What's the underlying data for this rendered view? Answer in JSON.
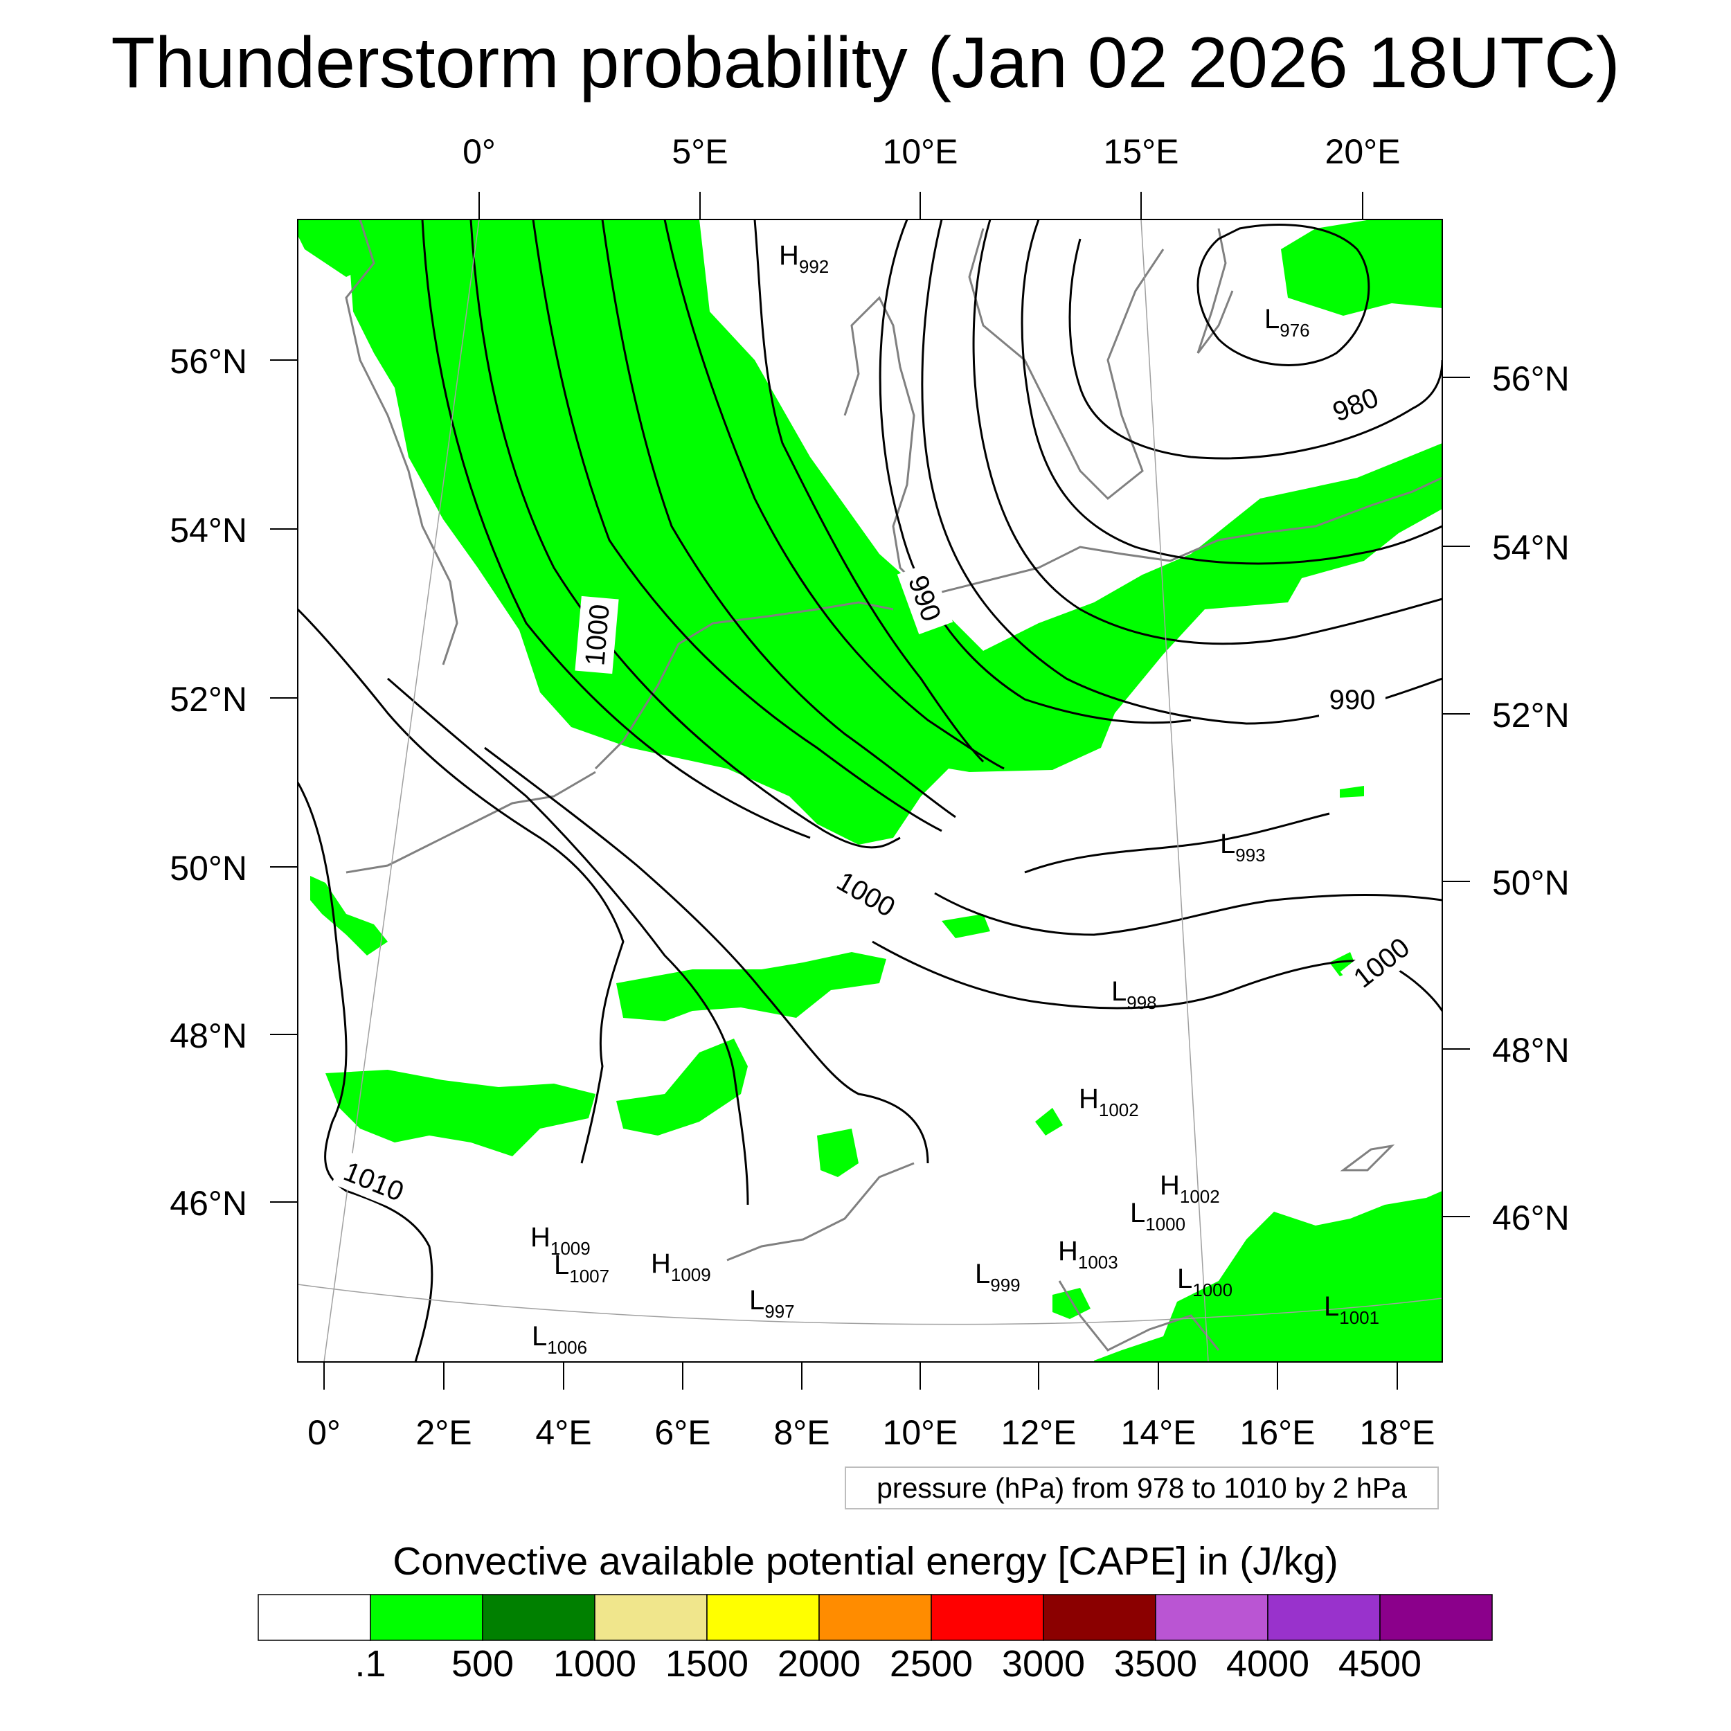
{
  "title": "Thunderstorm probability (Jan 02 2026 18UTC)",
  "top_longitudes": [
    "0°",
    "5°E",
    "10°E",
    "15°E",
    "20°E"
  ],
  "bottom_longitudes": [
    "0°",
    "2°E",
    "4°E",
    "6°E",
    "8°E",
    "10°E",
    "12°E",
    "14°E",
    "16°E",
    "18°E"
  ],
  "left_latitudes": [
    "56°N",
    "54°N",
    "52°N",
    "50°N",
    "48°N",
    "46°N"
  ],
  "right_latitudes": [
    "56°N",
    "54°N",
    "52°N",
    "50°N",
    "48°N",
    "46°N"
  ],
  "contour_labels": [
    "980",
    "990",
    "990",
    "1000",
    "1000",
    "1000",
    "1010"
  ],
  "pressure_centers": [
    {
      "kind": "H",
      "value": "992"
    },
    {
      "kind": "L",
      "value": "976"
    },
    {
      "kind": "L",
      "value": "993"
    },
    {
      "kind": "L",
      "value": "998"
    },
    {
      "kind": "H",
      "value": "1002"
    },
    {
      "kind": "H",
      "value": "1002"
    },
    {
      "kind": "L",
      "value": "1000"
    },
    {
      "kind": "H",
      "value": "1009"
    },
    {
      "kind": "L",
      "value": "1007"
    },
    {
      "kind": "H",
      "value": "1009"
    },
    {
      "kind": "L",
      "value": "997"
    },
    {
      "kind": "L",
      "value": "999"
    },
    {
      "kind": "H",
      "value": "1003"
    },
    {
      "kind": "L",
      "value": "1000"
    },
    {
      "kind": "L",
      "value": "1001"
    },
    {
      "kind": "L",
      "value": "1006"
    }
  ],
  "pressure_note": "pressure (hPa) from 978 to 1010 by 2 hPa",
  "colorbar": {
    "title": "Convective available potential energy [CAPE] in (J/kg)",
    "colors": [
      "#ffffff",
      "#00ff00",
      "#008000",
      "#f0e68c",
      "#ffff00",
      "#ff8c00",
      "#ff0000",
      "#8b0000",
      "#ba55d3",
      "#9932cc",
      "#8b008b"
    ],
    "labels": [
      ".1",
      "500",
      "1000",
      "1500",
      "2000",
      "2500",
      "3000",
      "3500",
      "4000",
      "4500"
    ]
  },
  "colors": {
    "cape_green": "#00ff00",
    "coast_gray": "#808080",
    "contour_black": "#000000",
    "grid_gray": "#a0a0a0"
  }
}
